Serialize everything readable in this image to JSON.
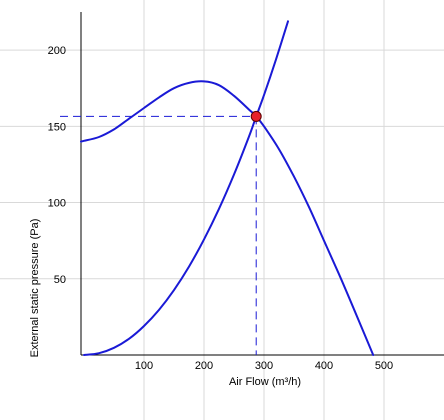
{
  "chart_data": {
    "type": "line",
    "title": "",
    "xlabel": "Air Flow (m³/h)",
    "ylabel": "External static pressure (Pa)",
    "xlim": [
      -5,
      600
    ],
    "ylim": [
      0,
      225
    ],
    "x_ticks": [
      {
        "value": 100,
        "label": "100"
      },
      {
        "value": 200,
        "label": "200"
      },
      {
        "value": 300,
        "label": "300"
      },
      {
        "value": 400,
        "label": "400"
      },
      {
        "value": 500,
        "label": "500"
      }
    ],
    "y_ticks": [
      {
        "value": 50,
        "label": "50"
      },
      {
        "value": 100,
        "label": "100"
      },
      {
        "value": 150,
        "label": "150"
      },
      {
        "value": 200,
        "label": "200"
      }
    ],
    "grid": true,
    "line_color": "#1a1ad6",
    "guide_color": "#1a1ad6",
    "point_color": "#e8202a",
    "series": [
      {
        "points": [
          {
            "x": -5,
            "y": 140
          },
          {
            "x": 0,
            "y": 140.5
          },
          {
            "x": 25,
            "y": 143
          },
          {
            "x": 50,
            "y": 148
          },
          {
            "x": 75,
            "y": 155
          },
          {
            "x": 100,
            "y": 162
          },
          {
            "x": 125,
            "y": 169
          },
          {
            "x": 150,
            "y": 175
          },
          {
            "x": 175,
            "y": 178.5
          },
          {
            "x": 200,
            "y": 179.5
          },
          {
            "x": 225,
            "y": 177
          },
          {
            "x": 250,
            "y": 170
          },
          {
            "x": 275,
            "y": 161
          },
          {
            "x": 287,
            "y": 156.5
          },
          {
            "x": 300,
            "y": 150
          },
          {
            "x": 325,
            "y": 135
          },
          {
            "x": 350,
            "y": 117
          },
          {
            "x": 375,
            "y": 97
          },
          {
            "x": 400,
            "y": 75
          },
          {
            "x": 425,
            "y": 53
          },
          {
            "x": 450,
            "y": 30
          },
          {
            "x": 482,
            "y": 0
          }
        ]
      },
      {
        "points": [
          {
            "x": 0,
            "y": 0
          },
          {
            "x": 25,
            "y": 1.2
          },
          {
            "x": 50,
            "y": 4.7
          },
          {
            "x": 75,
            "y": 10.6
          },
          {
            "x": 100,
            "y": 19
          },
          {
            "x": 125,
            "y": 29.6
          },
          {
            "x": 150,
            "y": 42.6
          },
          {
            "x": 175,
            "y": 58
          },
          {
            "x": 200,
            "y": 75.8
          },
          {
            "x": 225,
            "y": 95.9
          },
          {
            "x": 250,
            "y": 118.4
          },
          {
            "x": 275,
            "y": 143.3
          },
          {
            "x": 287,
            "y": 156.5
          },
          {
            "x": 300,
            "y": 170.5
          },
          {
            "x": 320,
            "y": 193.9
          },
          {
            "x": 340,
            "y": 218.9
          }
        ]
      }
    ],
    "operating_point": {
      "x": 287,
      "y": 156.5
    }
  }
}
